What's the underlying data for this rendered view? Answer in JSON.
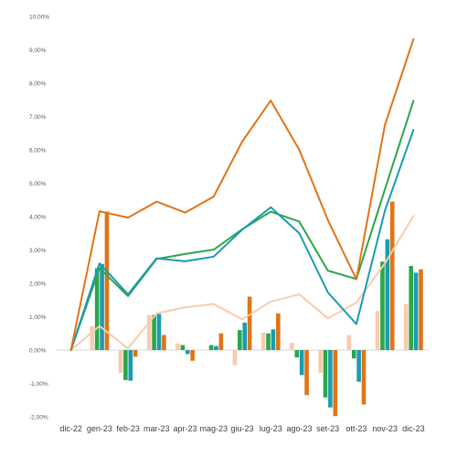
{
  "chart_data": {
    "type": "bar",
    "categories": [
      "dic-22",
      "gen-23",
      "feb-23",
      "mar-23",
      "apr-23",
      "mag-23",
      "giu-23",
      "lug-23",
      "ago-23",
      "set-23",
      "ott-23",
      "nov-23",
      "dic-23"
    ],
    "ylim": [
      -2,
      10
    ],
    "y_ticks": [
      -2,
      -1,
      0,
      1,
      2,
      3,
      4,
      5,
      6,
      7,
      8,
      9,
      10
    ],
    "y_tick_labels": [
      "-2,00%",
      "-1,00%",
      "0,00%",
      "1,00%",
      "2,00%",
      "3,00%",
      "4,00%",
      "5,00%",
      "6,00%",
      "7,00%",
      "8,00%",
      "9,00%",
      "10,00%"
    ],
    "grid": false,
    "legend": "none",
    "bar_series": [
      {
        "color": "#f8cbad",
        "values": [
          0,
          0.72,
          -0.68,
          1.05,
          0.2,
          0.0,
          -0.45,
          0.52,
          0.22,
          -0.68,
          0.45,
          1.17,
          1.38
        ]
      },
      {
        "color": "#2ca64a",
        "values": [
          0,
          2.45,
          -0.9,
          1.05,
          0.15,
          0.15,
          0.6,
          0.5,
          -0.22,
          -1.42,
          -0.25,
          2.65,
          2.52
        ]
      },
      {
        "color": "#1a9cb0",
        "values": [
          0,
          2.58,
          -0.92,
          1.08,
          -0.12,
          0.12,
          0.82,
          0.62,
          -0.75,
          -1.72,
          -0.95,
          3.32,
          2.32
        ]
      },
      {
        "color": "#e07418",
        "values": [
          0,
          4.15,
          -0.2,
          0.45,
          -0.32,
          0.5,
          1.6,
          1.1,
          -1.35,
          -1.98,
          -1.63,
          4.45,
          2.42
        ]
      }
    ],
    "line_series": [
      {
        "color": "#f8cbad",
        "values": [
          0,
          0.72,
          0.05,
          1.1,
          1.28,
          1.38,
          0.92,
          1.45,
          1.67,
          0.95,
          1.42,
          2.6,
          4.02
        ]
      },
      {
        "color": "#2ca64a",
        "values": [
          0,
          2.45,
          1.62,
          2.73,
          2.88,
          3.01,
          3.62,
          4.15,
          3.85,
          2.38,
          2.13,
          4.82,
          7.47
        ]
      },
      {
        "color": "#1a9cb0",
        "values": [
          0,
          2.6,
          1.67,
          2.75,
          2.66,
          2.8,
          3.61,
          4.28,
          3.5,
          1.73,
          0.78,
          4.18,
          6.6
        ]
      },
      {
        "color": "#e07418",
        "values": [
          0,
          4.16,
          3.97,
          4.45,
          4.12,
          4.6,
          6.25,
          7.48,
          6.0,
          3.9,
          2.12,
          6.75,
          9.32
        ]
      }
    ]
  }
}
